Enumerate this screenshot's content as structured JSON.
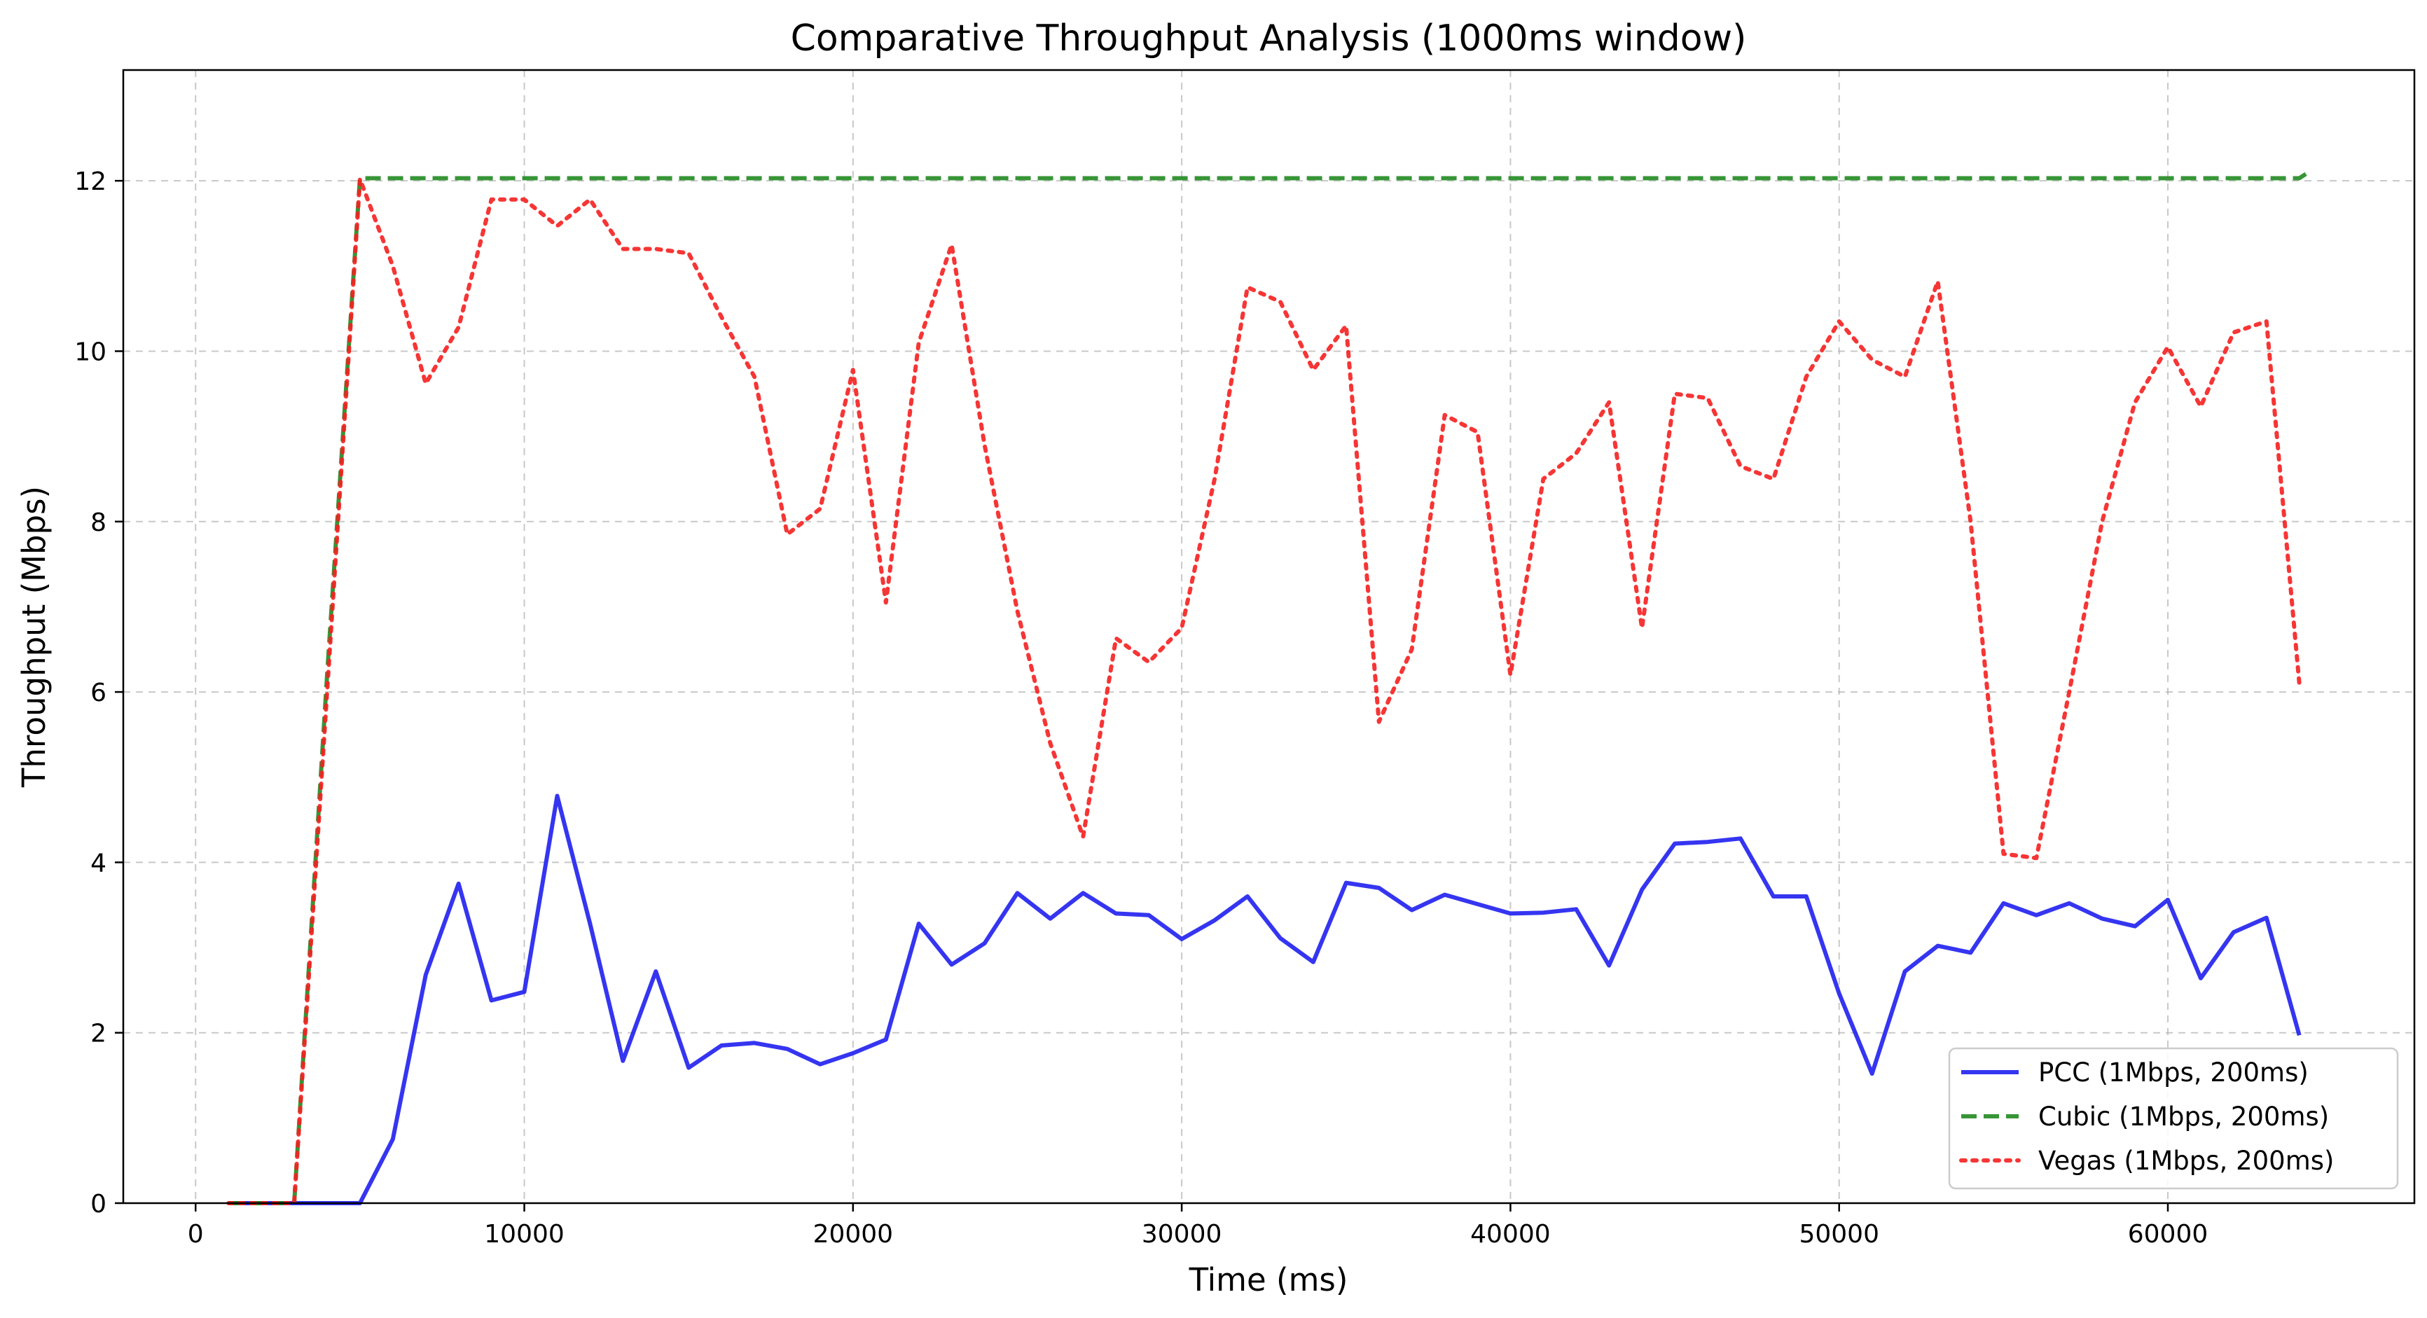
{
  "chart_data": {
    "type": "line",
    "title": "Comparative Throughput Analysis (1000ms window)",
    "xlabel": "Time (ms)",
    "ylabel": "Throughput (Mbps)",
    "xlim": [
      -2200,
      67500
    ],
    "ylim": [
      0,
      13.3
    ],
    "xticks": [
      0,
      10000,
      20000,
      30000,
      40000,
      50000,
      60000
    ],
    "yticks": [
      0,
      2,
      4,
      6,
      8,
      10,
      12
    ],
    "grid": true,
    "legend_position": "lower-right",
    "series": [
      {
        "name": "PCC (1Mbps, 200ms)",
        "color": "#1f1fef",
        "linestyle": "solid",
        "x": [
          1000,
          2000,
          3000,
          4000,
          5000,
          6000,
          7000,
          8000,
          9000,
          10000,
          11000,
          12000,
          13000,
          14000,
          15000,
          16000,
          17000,
          18000,
          19000,
          20000,
          21000,
          22000,
          23000,
          24000,
          25000,
          26000,
          27000,
          28000,
          29000,
          30000,
          31000,
          32000,
          33000,
          34000,
          35000,
          36000,
          37000,
          38000,
          39000,
          40000,
          41000,
          42000,
          43000,
          44000,
          45000,
          46000,
          47000,
          48000,
          49000,
          50000,
          51000,
          52000,
          53000,
          54000,
          55000,
          56000,
          57000,
          58000,
          59000,
          60000,
          61000,
          62000,
          63000,
          64000
        ],
        "y": [
          0,
          0,
          0,
          0,
          0,
          0.75,
          2.68,
          3.75,
          2.38,
          2.48,
          4.78,
          3.28,
          1.67,
          2.72,
          1.59,
          1.85,
          1.88,
          1.81,
          1.63,
          1.76,
          1.92,
          3.28,
          2.8,
          3.05,
          3.64,
          3.34,
          3.64,
          3.4,
          3.38,
          3.1,
          3.32,
          3.6,
          3.11,
          2.83,
          3.76,
          3.7,
          3.44,
          3.62,
          3.51,
          3.4,
          3.41,
          3.45,
          2.79,
          3.68,
          4.22,
          4.24,
          4.28,
          3.6,
          3.6,
          2.46,
          1.52,
          2.72,
          3.02,
          2.94,
          3.52,
          3.38,
          3.52,
          3.34,
          3.25,
          3.56,
          2.64,
          3.18,
          3.35,
          1.97
        ]
      },
      {
        "name": "Cubic (1Mbps, 200ms)",
        "color": "#218a21",
        "linestyle": "dashed",
        "x": [
          1000,
          2000,
          3000,
          4000,
          5000,
          6000,
          10000,
          20000,
          30000,
          40000,
          50000,
          60000,
          64000,
          64200
        ],
        "y": [
          0,
          0,
          0,
          6.2,
          12.03,
          12.03,
          12.03,
          12.03,
          12.03,
          12.03,
          12.03,
          12.03,
          12.03,
          12.08
        ]
      },
      {
        "name": "Vegas (1Mbps, 200ms)",
        "color": "#f51f1f",
        "linestyle": "dotted",
        "x": [
          1000,
          2000,
          3000,
          4000,
          5000,
          6000,
          7000,
          8000,
          9000,
          10000,
          11000,
          12000,
          13000,
          14000,
          15000,
          16000,
          17000,
          18000,
          19000,
          20000,
          21000,
          22000,
          23000,
          24000,
          25000,
          26000,
          27000,
          28000,
          29000,
          30000,
          31000,
          32000,
          33000,
          34000,
          35000,
          36000,
          37000,
          38000,
          39000,
          40000,
          41000,
          42000,
          43000,
          44000,
          45000,
          46000,
          47000,
          48000,
          49000,
          50000,
          51000,
          52000,
          53000,
          54000,
          55000,
          56000,
          57000,
          58000,
          59000,
          60000,
          61000,
          62000,
          63000,
          64000
        ],
        "y": [
          0,
          0,
          0,
          6.0,
          12.02,
          11.0,
          9.62,
          10.28,
          11.78,
          11.78,
          11.47,
          11.78,
          11.2,
          11.2,
          11.15,
          10.4,
          9.7,
          7.85,
          8.15,
          9.78,
          7.05,
          10.1,
          11.25,
          8.9,
          6.95,
          5.4,
          4.3,
          6.63,
          6.35,
          6.75,
          8.5,
          10.75,
          10.58,
          9.78,
          10.3,
          5.65,
          6.5,
          9.25,
          9.05,
          6.2,
          8.5,
          8.8,
          9.4,
          6.75,
          9.5,
          9.45,
          8.65,
          8.5,
          9.7,
          10.35,
          9.9,
          9.7,
          10.82,
          8.0,
          4.1,
          4.05,
          6.0,
          8.0,
          9.4,
          10.05,
          9.35,
          10.22,
          10.35,
          6.1
        ]
      }
    ]
  }
}
